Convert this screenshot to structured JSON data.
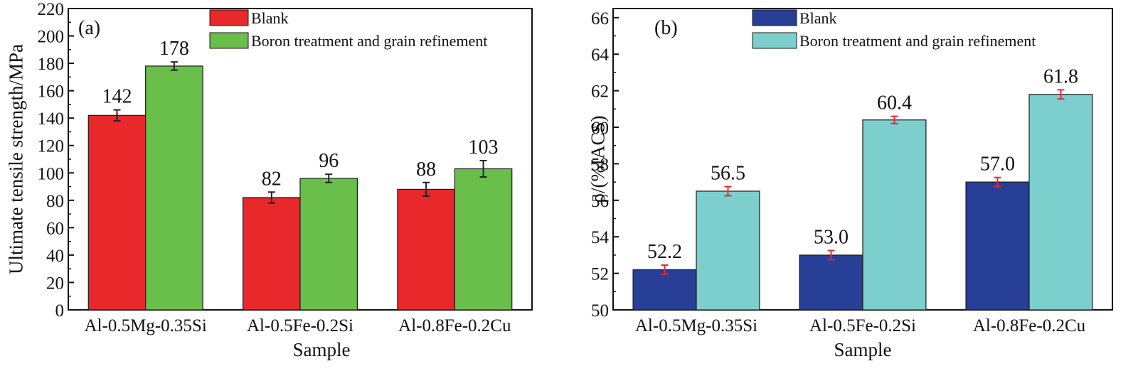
{
  "chart_data": [
    {
      "type": "bar",
      "panel_label": "(a)",
      "categories": [
        "Al-0.5Mg-0.35Si",
        "Al-0.5Fe-0.2Si",
        "Al-0.8Fe-0.2Cu"
      ],
      "series": [
        {
          "name": "Blank",
          "values": [
            142,
            82,
            88
          ],
          "errors": [
            4,
            4,
            5
          ],
          "color": "#e8282b",
          "error_color": "#222222",
          "labels": [
            "142",
            "82",
            "88"
          ]
        },
        {
          "name": "Boron treatment and grain refinement",
          "values": [
            178,
            96,
            103
          ],
          "errors": [
            3,
            3,
            6
          ],
          "color": "#6abf4b",
          "error_color": "#222222",
          "labels": [
            "178",
            "96",
            "103"
          ]
        }
      ],
      "xlabel": "Sample",
      "ylabel": "Ultimate tensile strength/MPa",
      "ylim": [
        0,
        220
      ],
      "yticks": [
        0,
        20,
        40,
        60,
        80,
        100,
        120,
        140,
        160,
        180,
        200,
        220
      ],
      "grid": false,
      "legend": "top-right"
    },
    {
      "type": "bar",
      "panel_label": "(b)",
      "categories": [
        "Al-0.5Mg-0.35Si",
        "Al-0.5Fe-0.2Si",
        "Al-0.8Fe-0.2Cu"
      ],
      "series": [
        {
          "name": "Blank",
          "values": [
            52.2,
            53.0,
            57.0
          ],
          "errors": [
            0.25,
            0.25,
            0.25
          ],
          "color": "#283f98",
          "error_color": "#e8282b",
          "labels": [
            "52.2",
            "53.0",
            "57.0"
          ]
        },
        {
          "name": "Boron treatment and grain refinement",
          "values": [
            56.5,
            60.4,
            61.8
          ],
          "errors": [
            0.25,
            0.2,
            0.25
          ],
          "color": "#7ccfcd",
          "error_color": "#e8282b",
          "labels": [
            "56.5",
            "60.4",
            "61.8"
          ]
        }
      ],
      "xlabel": "Sample",
      "ylabel": "ρ/(%IACS)",
      "ylim": [
        50,
        66.5
      ],
      "yticks": [
        50,
        52,
        54,
        56,
        58,
        60,
        62,
        64,
        66
      ],
      "grid": false,
      "legend": "top-right"
    }
  ]
}
